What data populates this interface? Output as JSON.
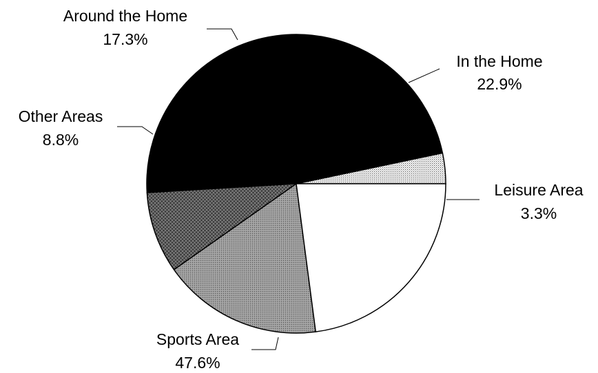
{
  "chart_data": {
    "type": "pie",
    "title": "",
    "start_angle_deg": 0,
    "direction": "counterclockwise",
    "slices": [
      {
        "label": "Leisure Area",
        "value": 3.3,
        "value_label": "3.3%",
        "fill": "dots-light"
      },
      {
        "label": "Sports Area",
        "value": 47.6,
        "value_label": "47.6%",
        "fill": "#000000"
      },
      {
        "label": "Other Areas",
        "value": 8.8,
        "value_label": "8.8%",
        "fill": "crosshatch-dark"
      },
      {
        "label": "Around the Home",
        "value": 17.3,
        "value_label": "17.3%",
        "fill": "gray-mid"
      },
      {
        "label": "In the Home",
        "value": 22.9,
        "value_label": "22.9%",
        "fill": "#ffffff"
      }
    ]
  }
}
